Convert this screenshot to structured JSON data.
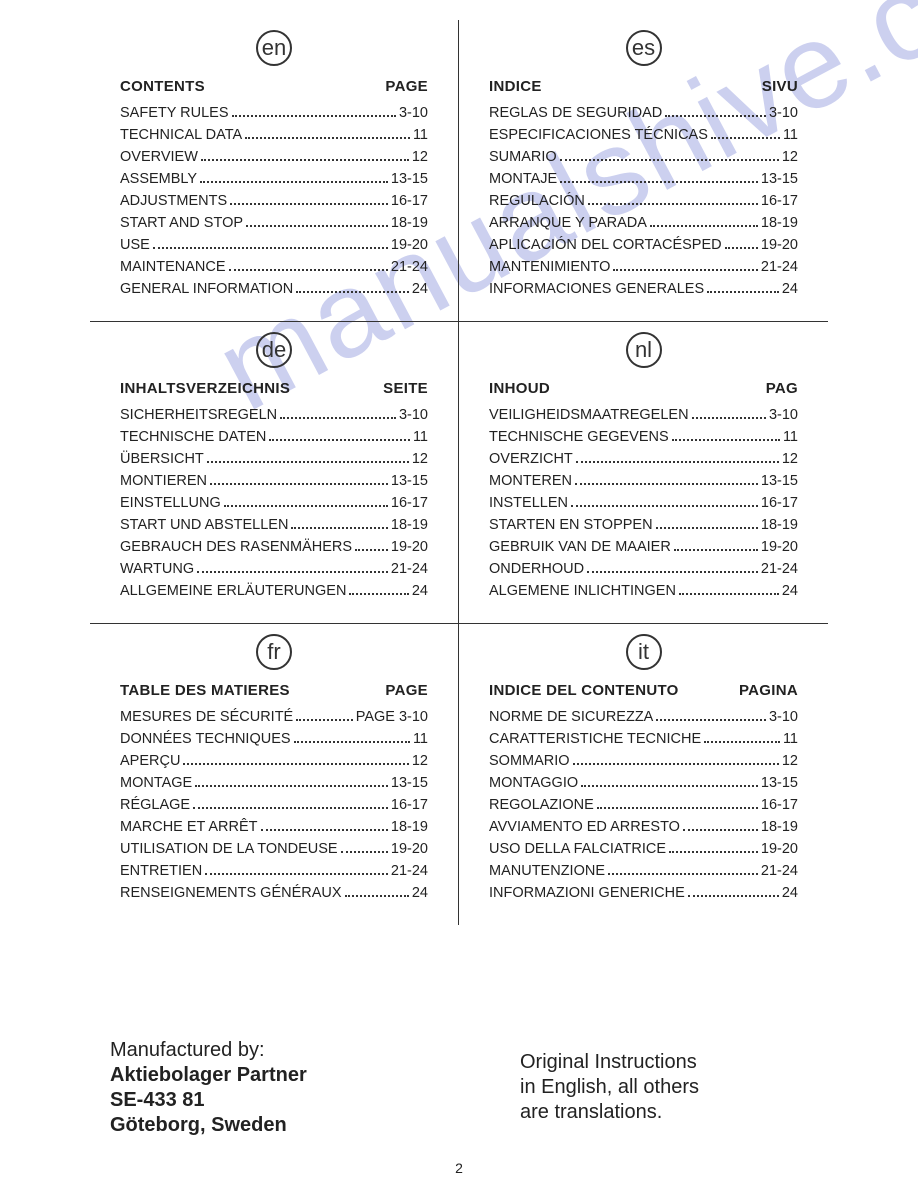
{
  "watermark_text": "manualshive.com",
  "page_number": "2",
  "manufacturer": {
    "line1": "Manufactured by:",
    "line2": "Aktiebolager Partner",
    "line3": "SE-433 81",
    "line4": "Göteborg, Sweden"
  },
  "note": {
    "line1": "Original Instructions",
    "line2": "in English, all others",
    "line3": "are translations."
  },
  "sections": [
    {
      "lang": "en",
      "head_left": "CONTENTS",
      "head_right": "PAGE",
      "items": [
        {
          "label": "SAFETY RULES",
          "page": "3-10"
        },
        {
          "label": "TECHNICAL DATA",
          "page": "11"
        },
        {
          "label": "OVERVIEW",
          "page": "12"
        },
        {
          "label": "ASSEMBLY",
          "page": "13-15"
        },
        {
          "label": "ADJUSTMENTS",
          "page": "16-17"
        },
        {
          "label": "START AND STOP",
          "page": "18-19"
        },
        {
          "label": "USE",
          "page": "19-20"
        },
        {
          "label": "MAINTENANCE",
          "page": "21-24"
        },
        {
          "label": "GENERAL INFORMATION",
          "page": "24"
        }
      ]
    },
    {
      "lang": "es",
      "head_left": "INDICE",
      "head_right": "SIVU",
      "items": [
        {
          "label": "REGLAS DE SEGURIDAD",
          "page": "3-10"
        },
        {
          "label": "ESPECIFICACIONES TÉCNICAS",
          "page": "11"
        },
        {
          "label": "SUMARIO",
          "page": "12"
        },
        {
          "label": "MONTAJE",
          "page": "13-15"
        },
        {
          "label": "REGULACIÓN",
          "page": "16-17"
        },
        {
          "label": "ARRANQUE Y PARADA",
          "page": "18-19"
        },
        {
          "label": "APLICACIÓN DEL CORTACÉSPED",
          "page": "19-20"
        },
        {
          "label": "MANTENIMIENTO",
          "page": "21-24"
        },
        {
          "label": "INFORMACIONES GENERALES",
          "page": "24"
        }
      ]
    },
    {
      "lang": "de",
      "head_left": "INHALTSVERZEICHNIS",
      "head_right": "SEITE",
      "items": [
        {
          "label": "SICHERHEITSREGELN",
          "page": "3-10"
        },
        {
          "label": "TECHNISCHE DATEN",
          "page": "11"
        },
        {
          "label": "ÜBERSICHT",
          "page": "12"
        },
        {
          "label": "MONTIEREN",
          "page": "13-15"
        },
        {
          "label": "EINSTELLUNG",
          "page": "16-17"
        },
        {
          "label": "START UND ABSTELLEN",
          "page": "18-19"
        },
        {
          "label": "GEBRAUCH DES RASENMÄHERS",
          "page": "19-20"
        },
        {
          "label": "WARTUNG",
          "page": "21-24"
        },
        {
          "label": "ALLGEMEINE ERLÄUTERUNGEN",
          "page": "24"
        }
      ]
    },
    {
      "lang": "nl",
      "head_left": "INHOUD",
      "head_right": "PAG",
      "items": [
        {
          "label": "VEILIGHEIDSMAATREGELEN",
          "page": "3-10"
        },
        {
          "label": "TECHNISCHE GEGEVENS",
          "page": "11"
        },
        {
          "label": "OVERZICHT",
          "page": "12"
        },
        {
          "label": "MONTEREN",
          "page": "13-15"
        },
        {
          "label": "INSTELLEN",
          "page": "16-17"
        },
        {
          "label": "STARTEN EN STOPPEN",
          "page": "18-19"
        },
        {
          "label": "GEBRUIK VAN DE MAAIER",
          "page": "19-20"
        },
        {
          "label": "ONDERHOUD",
          "page": "21-24"
        },
        {
          "label": "ALGEMENE INLICHTINGEN",
          "page": "24"
        }
      ]
    },
    {
      "lang": "fr",
      "head_left": "TABLE DES MATIERES",
      "head_right": "PAGE",
      "items": [
        {
          "label": "MESURES DE SÉCURITÉ",
          "page": "PAGE 3-10"
        },
        {
          "label": "DONNÉES TECHNIQUES",
          "page": "11"
        },
        {
          "label": "APERÇU",
          "page": "12"
        },
        {
          "label": "MONTAGE",
          "page": "13-15"
        },
        {
          "label": "RÉGLAGE",
          "page": "16-17"
        },
        {
          "label": "MARCHE ET ARRÊT",
          "page": "18-19"
        },
        {
          "label": "UTILISATION DE LA TONDEUSE",
          "page": "19-20"
        },
        {
          "label": "ENTRETIEN",
          "page": "21-24"
        },
        {
          "label": "RENSEIGNEMENTS GÉNÉRAUX",
          "page": "24"
        }
      ]
    },
    {
      "lang": "it",
      "head_left": "INDICE DEL CONTENUTO",
      "head_right": "PAGINA",
      "items": [
        {
          "label": "NORME DE SICUREZZA",
          "page": "3-10"
        },
        {
          "label": "CARATTERISTICHE TECNICHE",
          "page": "11"
        },
        {
          "label": "SOMMARIO",
          "page": "12"
        },
        {
          "label": "MONTAGGIO",
          "page": "13-15"
        },
        {
          "label": "REGOLAZIONE",
          "page": "16-17"
        },
        {
          "label": "AVVIAMENTO ED ARRESTO",
          "page": "18-19"
        },
        {
          "label": "USO DELLA FALCIATRICE",
          "page": "19-20"
        },
        {
          "label": "MANUTENZIONE",
          "page": "21-24"
        },
        {
          "label": "INFORMAZIONI GENERICHE",
          "page": "24"
        }
      ]
    }
  ]
}
